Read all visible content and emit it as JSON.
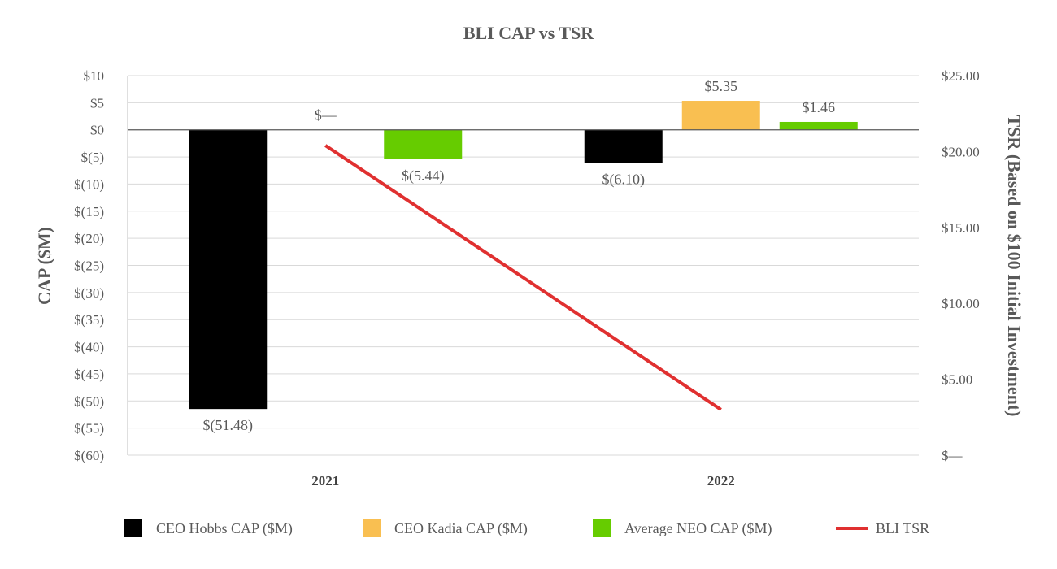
{
  "chart_data": {
    "type": "bar",
    "title": "BLI CAP vs TSR",
    "categories": [
      "2021",
      "2022"
    ],
    "ylabel": "CAP ($M)",
    "y2label": "TSR (Based on $100 Initial Investment)",
    "ylim": [
      -60,
      10
    ],
    "y2lim": [
      0,
      25
    ],
    "yticks": [
      {
        "value": 10,
        "label": "$10"
      },
      {
        "value": 5,
        "label": "$5"
      },
      {
        "value": 0,
        "label": "$0"
      },
      {
        "value": -5,
        "label": "$(5)"
      },
      {
        "value": -10,
        "label": "$(10)"
      },
      {
        "value": -15,
        "label": "$(15)"
      },
      {
        "value": -20,
        "label": "$(20)"
      },
      {
        "value": -25,
        "label": "$(25)"
      },
      {
        "value": -30,
        "label": "$(30)"
      },
      {
        "value": -35,
        "label": "$(35)"
      },
      {
        "value": -40,
        "label": "$(40)"
      },
      {
        "value": -45,
        "label": "$(45)"
      },
      {
        "value": -50,
        "label": "$(50)"
      },
      {
        "value": -55,
        "label": "$(55)"
      },
      {
        "value": -60,
        "label": "$(60)"
      }
    ],
    "y2ticks": [
      {
        "value": 25,
        "label": "$25.00"
      },
      {
        "value": 20,
        "label": "$20.00"
      },
      {
        "value": 15,
        "label": "$15.00"
      },
      {
        "value": 10,
        "label": "$10.00"
      },
      {
        "value": 5,
        "label": "$5.00"
      },
      {
        "value": 0,
        "label": "$—"
      }
    ],
    "series": [
      {
        "name": "CEO Hobbs  CAP ($M)",
        "key": "hobbs",
        "kind": "bar",
        "color": "#000000",
        "values": [
          -51.48,
          -6.1
        ],
        "labels": [
          "$(51.48)",
          "$(6.10)"
        ]
      },
      {
        "name": "CEO Kadia CAP ($M)",
        "key": "kadia",
        "kind": "bar",
        "color": "#F9BF51",
        "values": [
          0,
          5.35
        ],
        "labels": [
          "$—",
          "$5.35"
        ]
      },
      {
        "name": "Average NEO CAP ($M)",
        "key": "neo",
        "kind": "bar",
        "color": "#66CC00",
        "values": [
          -5.44,
          1.46
        ],
        "labels": [
          "$(5.44)",
          "$1.46"
        ]
      },
      {
        "name": "BLI TSR",
        "key": "tsr",
        "kind": "line",
        "axis": "right",
        "color": "#E03030",
        "values": [
          20.4,
          3.0
        ]
      }
    ],
    "legend_position": "bottom"
  }
}
